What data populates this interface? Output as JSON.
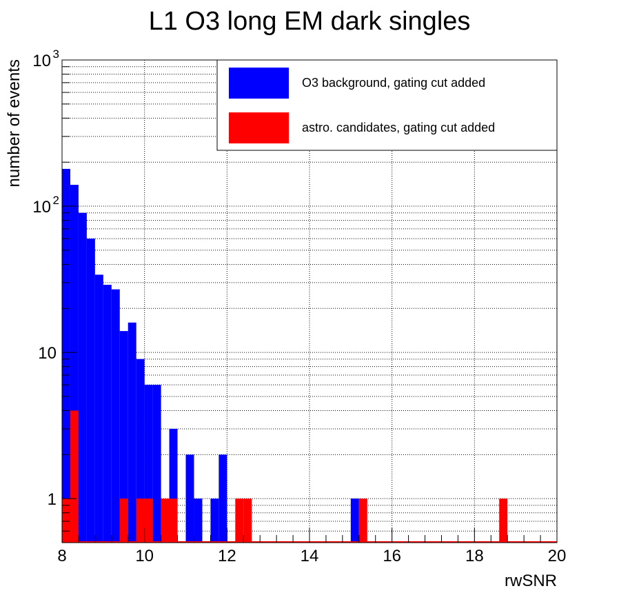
{
  "chart_data": {
    "type": "bar",
    "title": "L1 O3 long EM dark singles",
    "xlabel": "rwSNR",
    "ylabel": "number of events",
    "x_range": [
      8,
      20
    ],
    "y_range": [
      0.5,
      1000
    ],
    "y_scale": "log",
    "grid": true,
    "bin_width": 0.2,
    "x_ticks": [
      8,
      10,
      12,
      14,
      16,
      18,
      20
    ],
    "x_tick_labels": [
      "8",
      "10",
      "12",
      "14",
      "16",
      "18",
      "20"
    ],
    "y_ticks": [
      {
        "value": 1,
        "base": "1",
        "exp": ""
      },
      {
        "value": 10,
        "base": "10",
        "exp": ""
      },
      {
        "value": 100,
        "base": "10",
        "exp": "2"
      },
      {
        "value": 1000,
        "base": "10",
        "exp": "3"
      }
    ],
    "legend_position": "top-right",
    "series": [
      {
        "name": "O3 background, gating cut added",
        "color": "#0000ff",
        "bins": [
          {
            "x": 8.0,
            "value": 180
          },
          {
            "x": 8.2,
            "value": 140
          },
          {
            "x": 8.4,
            "value": 90
          },
          {
            "x": 8.6,
            "value": 60
          },
          {
            "x": 8.8,
            "value": 34
          },
          {
            "x": 9.0,
            "value": 29
          },
          {
            "x": 9.2,
            "value": 27
          },
          {
            "x": 9.4,
            "value": 14
          },
          {
            "x": 9.6,
            "value": 16
          },
          {
            "x": 9.8,
            "value": 9
          },
          {
            "x": 10.0,
            "value": 6
          },
          {
            "x": 10.2,
            "value": 6
          },
          {
            "x": 10.6,
            "value": 3
          },
          {
            "x": 11.0,
            "value": 2
          },
          {
            "x": 11.2,
            "value": 1
          },
          {
            "x": 11.6,
            "value": 1
          },
          {
            "x": 11.8,
            "value": 2
          },
          {
            "x": 15.0,
            "value": 1
          }
        ]
      },
      {
        "name": "astro. candidates, gating cut added",
        "color": "#ff0000",
        "bins": [
          {
            "x": 8.0,
            "value": 1
          },
          {
            "x": 8.2,
            "value": 4
          },
          {
            "x": 9.4,
            "value": 1
          },
          {
            "x": 9.8,
            "value": 1
          },
          {
            "x": 10.0,
            "value": 1
          },
          {
            "x": 10.4,
            "value": 1
          },
          {
            "x": 10.6,
            "value": 1
          },
          {
            "x": 12.2,
            "value": 1
          },
          {
            "x": 12.4,
            "value": 1
          },
          {
            "x": 15.2,
            "value": 1
          },
          {
            "x": 18.6,
            "value": 1
          }
        ]
      }
    ]
  }
}
